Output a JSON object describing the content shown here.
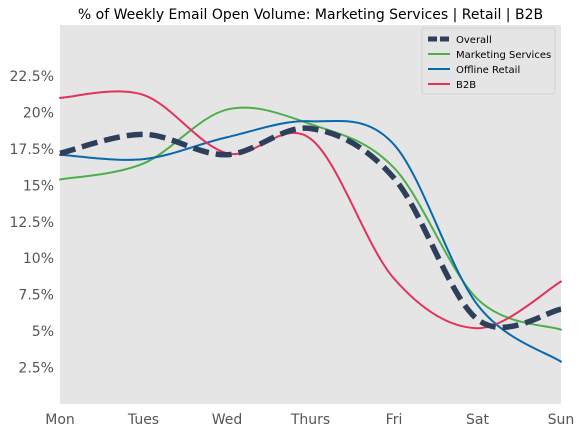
{
  "chart_data": {
    "type": "line",
    "title": "% of Weekly Email Open Volume: Marketing Services | Retail | B2B",
    "xlabel": "",
    "ylabel": "",
    "categories": [
      "Mon",
      "Tues",
      "Wed",
      "Thurs",
      "Fri",
      "Sat",
      "Sun"
    ],
    "x": [
      0,
      1,
      2,
      3,
      4,
      5,
      6
    ],
    "xlim": [
      0,
      6
    ],
    "ylim": [
      0,
      26
    ],
    "yticks": [
      2.5,
      5,
      7.5,
      10,
      12.5,
      15,
      17.5,
      20,
      22.5
    ],
    "ytick_labels": [
      "2.5%",
      "5%",
      "7.5%",
      "10%",
      "12.5%",
      "15%",
      "17.5%",
      "20%",
      "22.5%"
    ],
    "grid": false,
    "legend_position": "top-right",
    "background": "#e5e5e5",
    "series": [
      {
        "name": "Overall",
        "color": "#2e3f5c",
        "style": "dashed",
        "values": [
          17.2,
          18.5,
          17.1,
          18.9,
          15.5,
          5.8,
          6.5
        ]
      },
      {
        "name": "Marketing Services",
        "color": "#4daf4a",
        "style": "solid",
        "values": [
          15.4,
          16.5,
          20.2,
          19.2,
          16.2,
          7.2,
          5.1
        ]
      },
      {
        "name": "Offline Retail",
        "color": "#0868ac",
        "style": "solid",
        "values": [
          17.1,
          16.8,
          18.3,
          19.4,
          17.8,
          6.8,
          2.9
        ]
      },
      {
        "name": "B2B",
        "color": "#e0325a",
        "style": "solid",
        "values": [
          21.0,
          21.2,
          17.2,
          18.2,
          8.6,
          5.2,
          8.4
        ]
      }
    ]
  }
}
